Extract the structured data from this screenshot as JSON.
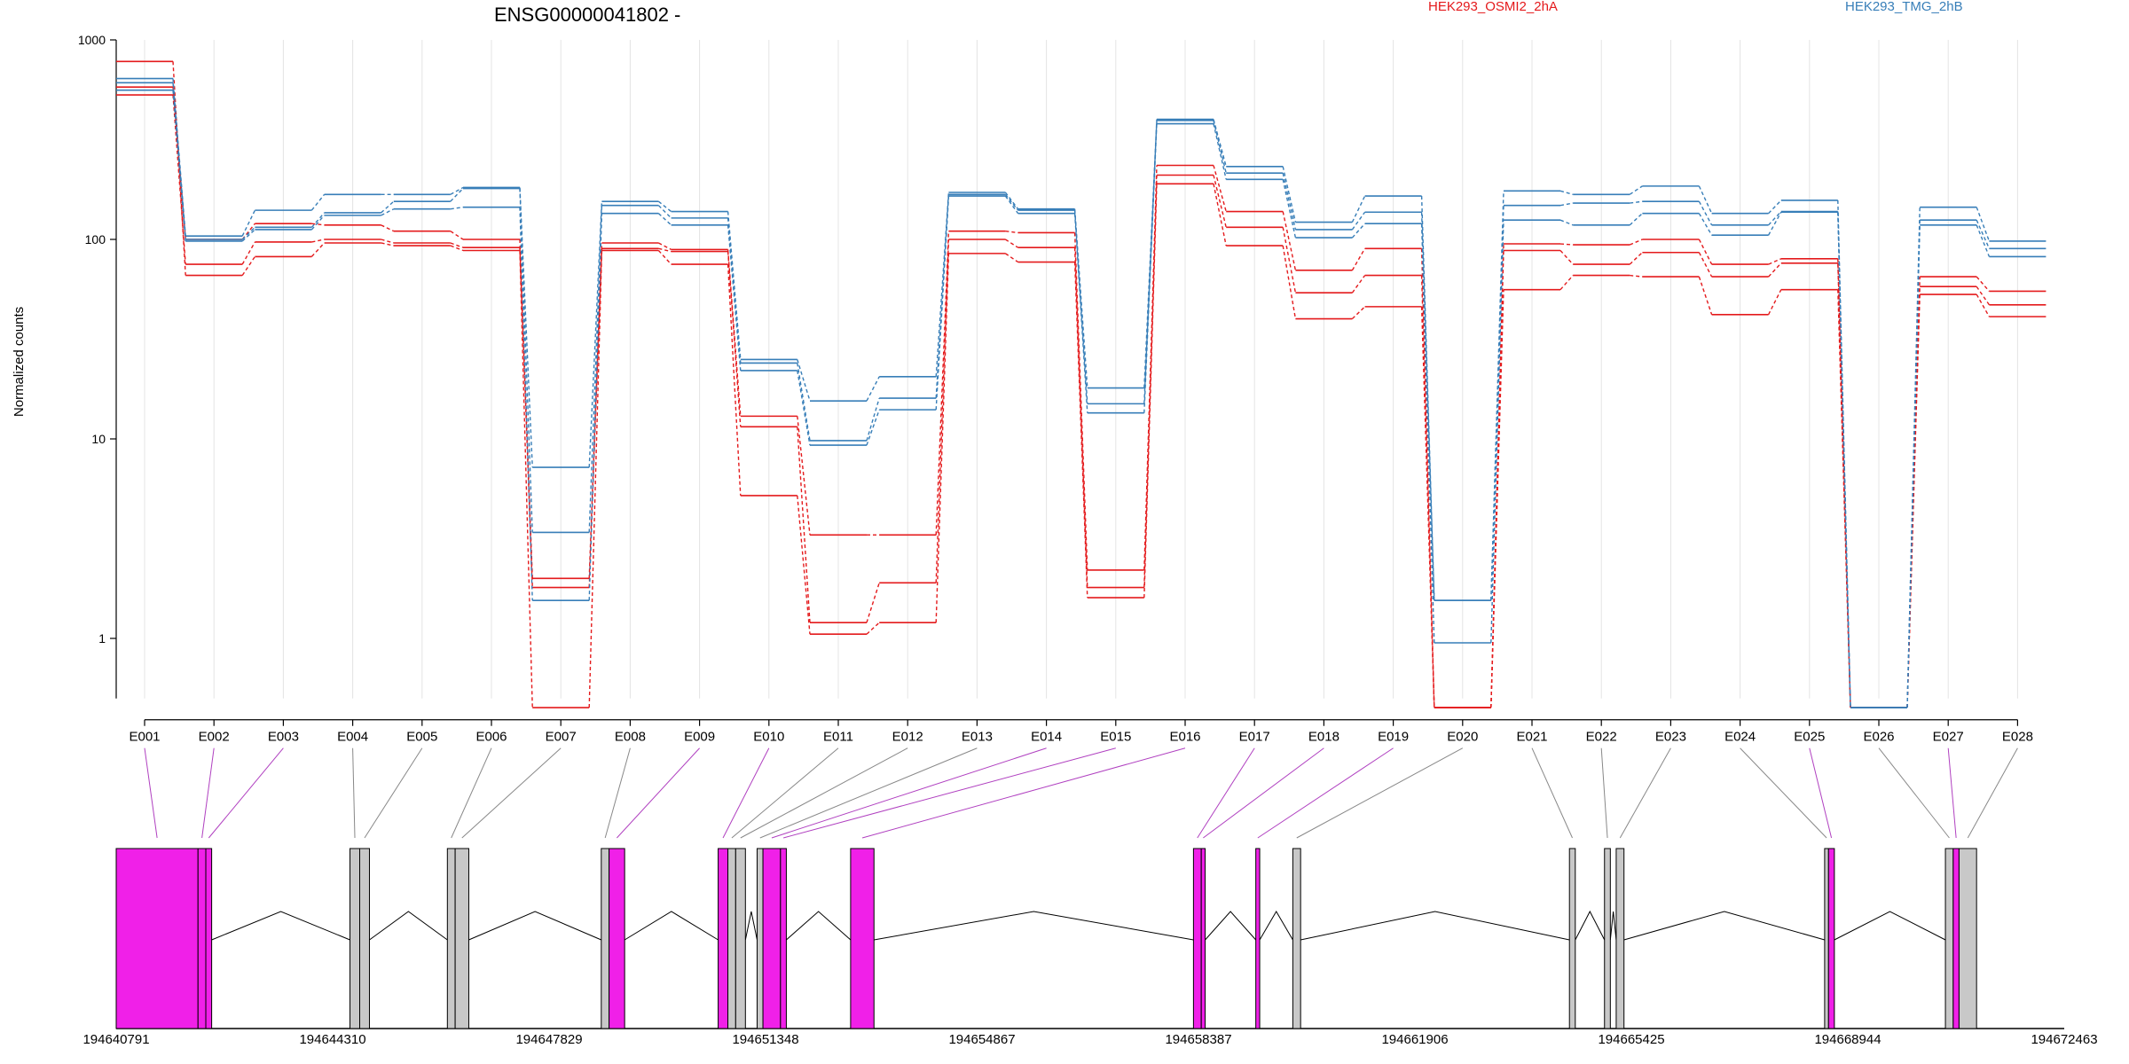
{
  "chart_data": {
    "type": "line",
    "title": "ENSG00000041802 -",
    "ylabel": "Normalized counts",
    "xlabel": "",
    "y_scale": "log",
    "ylim": [
      0.5,
      1000
    ],
    "y_ticks": [
      "1000",
      "100",
      "10",
      "1"
    ],
    "grid": "vertical lines at each exon",
    "legend_position": "top-right",
    "categories": [
      "E001",
      "E002",
      "E003",
      "E004",
      "E005",
      "E006",
      "E007",
      "E008",
      "E009",
      "E010",
      "E011",
      "E012",
      "E013",
      "E014",
      "E015",
      "E016",
      "E017",
      "E018",
      "E019",
      "E020",
      "E021",
      "E022",
      "E023",
      "E024",
      "E025",
      "E026",
      "E027",
      "E028"
    ],
    "groups": [
      {
        "name": "HEK293_OSMI2_2hA",
        "color": "#e41a1c"
      },
      {
        "name": "HEK293_TMG_2hB",
        "color": "#377eb8"
      }
    ],
    "series": [
      {
        "name": "HEK293_OSMI2_2hA",
        "color": "#e41a1c",
        "values": [
          780,
          66,
          82,
          96,
          93,
          88,
          0.45,
          88,
          75,
          5.2,
          1.05,
          1.2,
          85,
          77,
          1.6,
          190,
          93,
          40,
          46,
          0.45,
          56,
          66,
          65,
          42,
          56,
          0.45,
          53,
          41
        ]
      },
      {
        "name": "HEK293_OSMI2_2hA",
        "color": "#e41a1c",
        "values": [
          530,
          75,
          97,
          100,
          96,
          91,
          1.8,
          90,
          87,
          11.5,
          1.2,
          1.9,
          100,
          91,
          1.8,
          210,
          115,
          54,
          66,
          0.45,
          88,
          75,
          86,
          65,
          76,
          0.45,
          58,
          47
        ]
      },
      {
        "name": "HEK293_OSMI2_2hA",
        "color": "#e41a1c",
        "values": [
          580,
          100,
          120,
          118,
          110,
          100,
          2.0,
          96,
          89,
          13,
          3.3,
          3.3,
          110,
          108,
          2.2,
          235,
          138,
          70,
          90,
          0.45,
          95,
          94,
          100,
          75,
          80,
          0.45,
          65,
          55
        ]
      },
      {
        "name": "HEK293_TMG_2hB",
        "color": "#377eb8",
        "values": [
          560,
          98,
          112,
          132,
          142,
          145,
          1.55,
          135,
          118,
          22,
          9.3,
          14,
          165,
          135,
          13.5,
          380,
          200,
          102,
          120,
          0.95,
          125,
          118,
          135,
          105,
          137,
          0.45,
          118,
          82
        ]
      },
      {
        "name": "HEK293_TMG_2hB",
        "color": "#377eb8",
        "values": [
          610,
          100,
          115,
          136,
          155,
          180,
          3.4,
          148,
          128,
          24,
          9.8,
          16,
          168,
          140,
          15,
          395,
          215,
          112,
          137,
          1.55,
          148,
          152,
          155,
          118,
          138,
          0.45,
          125,
          90
        ]
      },
      {
        "name": "HEK293_TMG_2hB",
        "color": "#377eb8",
        "values": [
          640,
          104,
          140,
          168,
          168,
          182,
          7.2,
          155,
          138,
          25,
          15.5,
          20.5,
          172,
          142,
          18,
          400,
          232,
          122,
          165,
          1.55,
          175,
          168,
          185,
          135,
          157,
          0.45,
          145,
          98
        ]
      }
    ],
    "gene_model": {
      "coordinate_labels": [
        "194640791",
        "194644310",
        "194647829",
        "194651348",
        "194654867",
        "194658387",
        "194661906",
        "194665425",
        "194668944",
        "194672463"
      ],
      "exons": [
        {
          "id": "E001",
          "start": 0.0,
          "end": 0.042,
          "significant": true
        },
        {
          "id": "E002",
          "start": 0.042,
          "end": 0.046,
          "significant": true
        },
        {
          "id": "E003",
          "start": 0.046,
          "end": 0.049,
          "significant": true
        },
        {
          "id": "E004",
          "start": 0.12,
          "end": 0.125,
          "significant": false
        },
        {
          "id": "E005",
          "start": 0.125,
          "end": 0.13,
          "significant": false
        },
        {
          "id": "E006",
          "start": 0.17,
          "end": 0.174,
          "significant": false
        },
        {
          "id": "E007",
          "start": 0.174,
          "end": 0.181,
          "significant": false
        },
        {
          "id": "E008",
          "start": 0.249,
          "end": 0.253,
          "significant": false
        },
        {
          "id": "E009",
          "start": 0.253,
          "end": 0.261,
          "significant": true
        },
        {
          "id": "E010",
          "start": 0.309,
          "end": 0.314,
          "significant": true
        },
        {
          "id": "E011",
          "start": 0.314,
          "end": 0.318,
          "significant": false
        },
        {
          "id": "E012",
          "start": 0.318,
          "end": 0.323,
          "significant": false
        },
        {
          "id": "E013",
          "start": 0.329,
          "end": 0.332,
          "significant": false
        },
        {
          "id": "E014",
          "start": 0.332,
          "end": 0.341,
          "significant": true
        },
        {
          "id": "E015",
          "start": 0.341,
          "end": 0.344,
          "significant": true
        },
        {
          "id": "E016",
          "start": 0.377,
          "end": 0.389,
          "significant": true
        },
        {
          "id": "E017",
          "start": 0.553,
          "end": 0.557,
          "significant": true
        },
        {
          "id": "E018",
          "start": 0.557,
          "end": 0.559,
          "significant": true
        },
        {
          "id": "E019",
          "start": 0.585,
          "end": 0.587,
          "significant": true
        },
        {
          "id": "E020",
          "start": 0.604,
          "end": 0.608,
          "significant": false
        },
        {
          "id": "E021",
          "start": 0.746,
          "end": 0.749,
          "significant": false
        },
        {
          "id": "E022",
          "start": 0.764,
          "end": 0.767,
          "significant": false
        },
        {
          "id": "E023",
          "start": 0.77,
          "end": 0.774,
          "significant": false
        },
        {
          "id": "E024",
          "start": 0.877,
          "end": 0.879,
          "significant": false
        },
        {
          "id": "E025",
          "start": 0.879,
          "end": 0.882,
          "significant": true
        },
        {
          "id": "E026",
          "start": 0.939,
          "end": 0.943,
          "significant": false
        },
        {
          "id": "E027",
          "start": 0.943,
          "end": 0.946,
          "significant": true
        },
        {
          "id": "E028",
          "start": 0.946,
          "end": 0.955,
          "significant": false
        }
      ],
      "introns": [
        [
          0.049,
          0.12
        ],
        [
          0.13,
          0.17
        ],
        [
          0.181,
          0.249
        ],
        [
          0.261,
          0.309
        ],
        [
          0.323,
          0.329
        ],
        [
          0.344,
          0.377
        ],
        [
          0.389,
          0.553
        ],
        [
          0.559,
          0.585
        ],
        [
          0.587,
          0.604
        ],
        [
          0.608,
          0.746
        ],
        [
          0.749,
          0.764
        ],
        [
          0.767,
          0.77
        ],
        [
          0.774,
          0.877
        ],
        [
          0.882,
          0.939
        ]
      ]
    }
  },
  "colors": {
    "significant_exon": "#f020e8",
    "normal_exon": "#c8c8c8",
    "significant_link": "#b040c0",
    "normal_link": "#888888",
    "grid": "#e4e4e4"
  }
}
